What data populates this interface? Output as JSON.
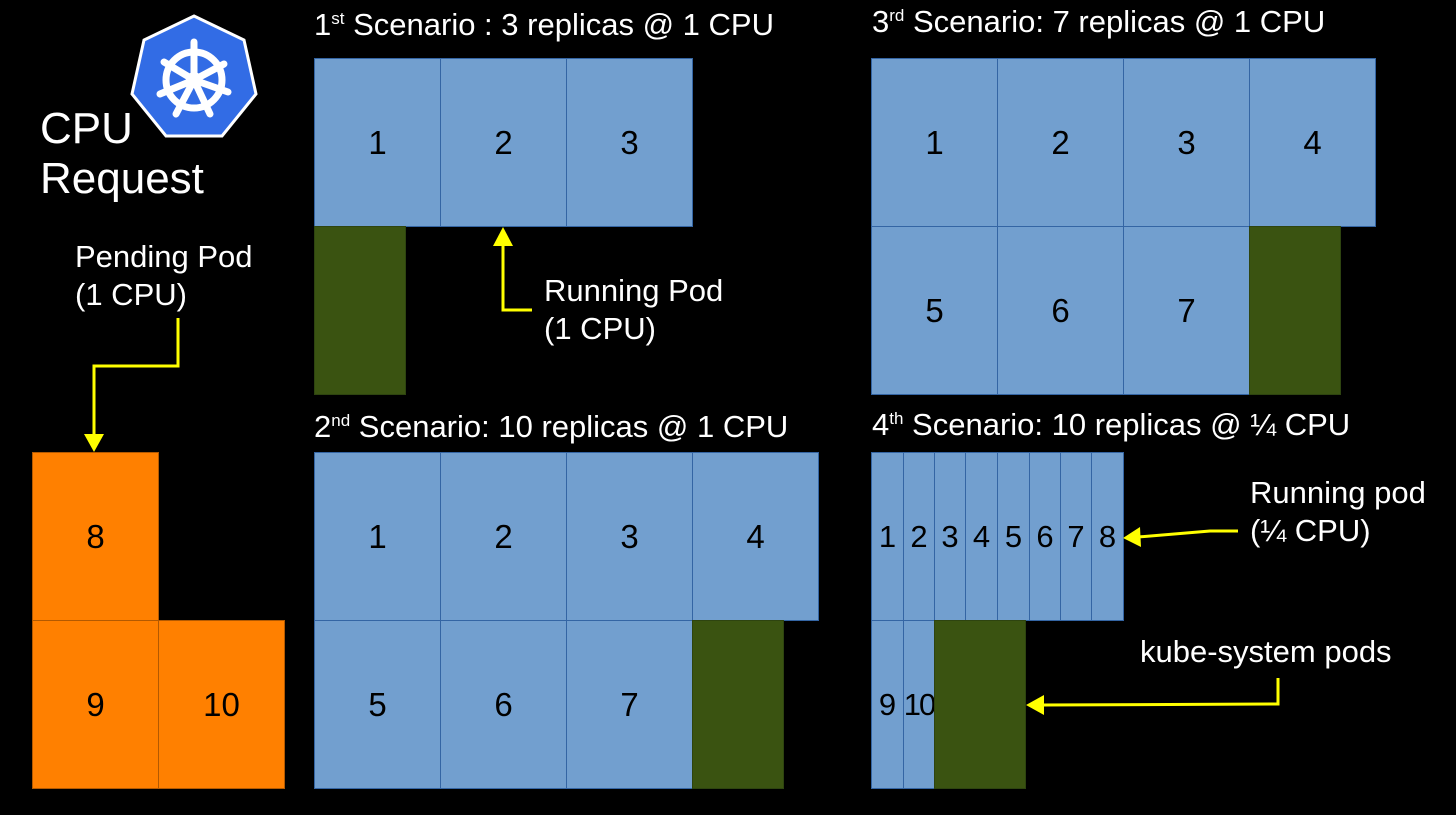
{
  "heading": {
    "line1": "CPU",
    "line2": "Request"
  },
  "logo_icon": "kubernetes-helm-wheel-icon",
  "pending_note": {
    "line1": "Pending Pod",
    "line2": "(1 CPU)"
  },
  "pending_pods": [
    "8",
    "9",
    "10"
  ],
  "scenario1": {
    "ordinal": "1",
    "suffix": "st",
    "rest": " Scenario : 3 replicas @ 1 CPU",
    "pods": [
      "1",
      "2",
      "3"
    ]
  },
  "scenario2": {
    "ordinal": "2",
    "suffix": "nd",
    "rest": " Scenario: 10 replicas @ 1  CPU",
    "pods": [
      "1",
      "2",
      "3",
      "4",
      "5",
      "6",
      "7"
    ]
  },
  "scenario3": {
    "ordinal": "3",
    "suffix": "rd",
    "rest": " Scenario: 7 replicas @ 1  CPU",
    "pods": [
      "1",
      "2",
      "3",
      "4",
      "5",
      "6",
      "7"
    ]
  },
  "scenario4": {
    "ordinal": "4",
    "suffix": "th",
    "rest": " Scenario: 10 replicas @ ¼  CPU",
    "pods": [
      "1",
      "2",
      "3",
      "4",
      "5",
      "6",
      "7",
      "8",
      "9",
      "10"
    ]
  },
  "running_note": {
    "line1": "Running Pod",
    "line2": "(1 CPU)"
  },
  "running_quarter_note": {
    "line1": "Running pod",
    "line2": "(¼ CPU)"
  },
  "kube_system_note": "kube-system pods",
  "colors": {
    "background": "#000000",
    "running_pod": "#729fcf",
    "pending_pod": "#ff8000",
    "kube_system_pod": "#3a5311",
    "arrow": "#ffff00"
  }
}
